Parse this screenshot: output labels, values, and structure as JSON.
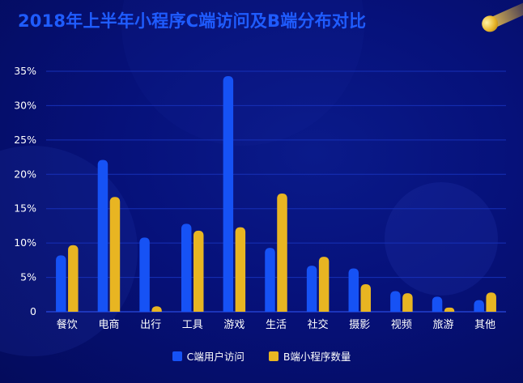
{
  "title": "2018年上半年小程序C端访问及B端分布对比",
  "colors": {
    "c_series": "#1652f5",
    "b_series": "#e8b522",
    "axis_text": "#ffffff",
    "grid": "#1730b8",
    "title": "#1f5cff"
  },
  "chart_data": {
    "type": "bar",
    "title": "2018年上半年小程序C端访问及B端分布对比",
    "xlabel": "",
    "ylabel": "",
    "ylim": [
      0,
      35
    ],
    "y_ticks": [
      "0",
      "5%",
      "10%",
      "15%",
      "20%",
      "25%",
      "30%",
      "35%"
    ],
    "categories": [
      "餐饮",
      "电商",
      "出行",
      "工具",
      "游戏",
      "生活",
      "社交",
      "摄影",
      "视频",
      "旅游",
      "其他"
    ],
    "series": [
      {
        "name": "C端用户访问",
        "values": [
          8.2,
          22.1,
          10.8,
          12.8,
          34.3,
          9.3,
          6.7,
          6.3,
          3.0,
          2.2,
          1.7
        ]
      },
      {
        "name": "B端小程序数量",
        "values": [
          9.7,
          16.7,
          0.8,
          11.8,
          12.3,
          17.2,
          8.0,
          4.0,
          2.7,
          0.6,
          2.8
        ]
      }
    ],
    "grid": true,
    "legend_position": "bottom"
  }
}
